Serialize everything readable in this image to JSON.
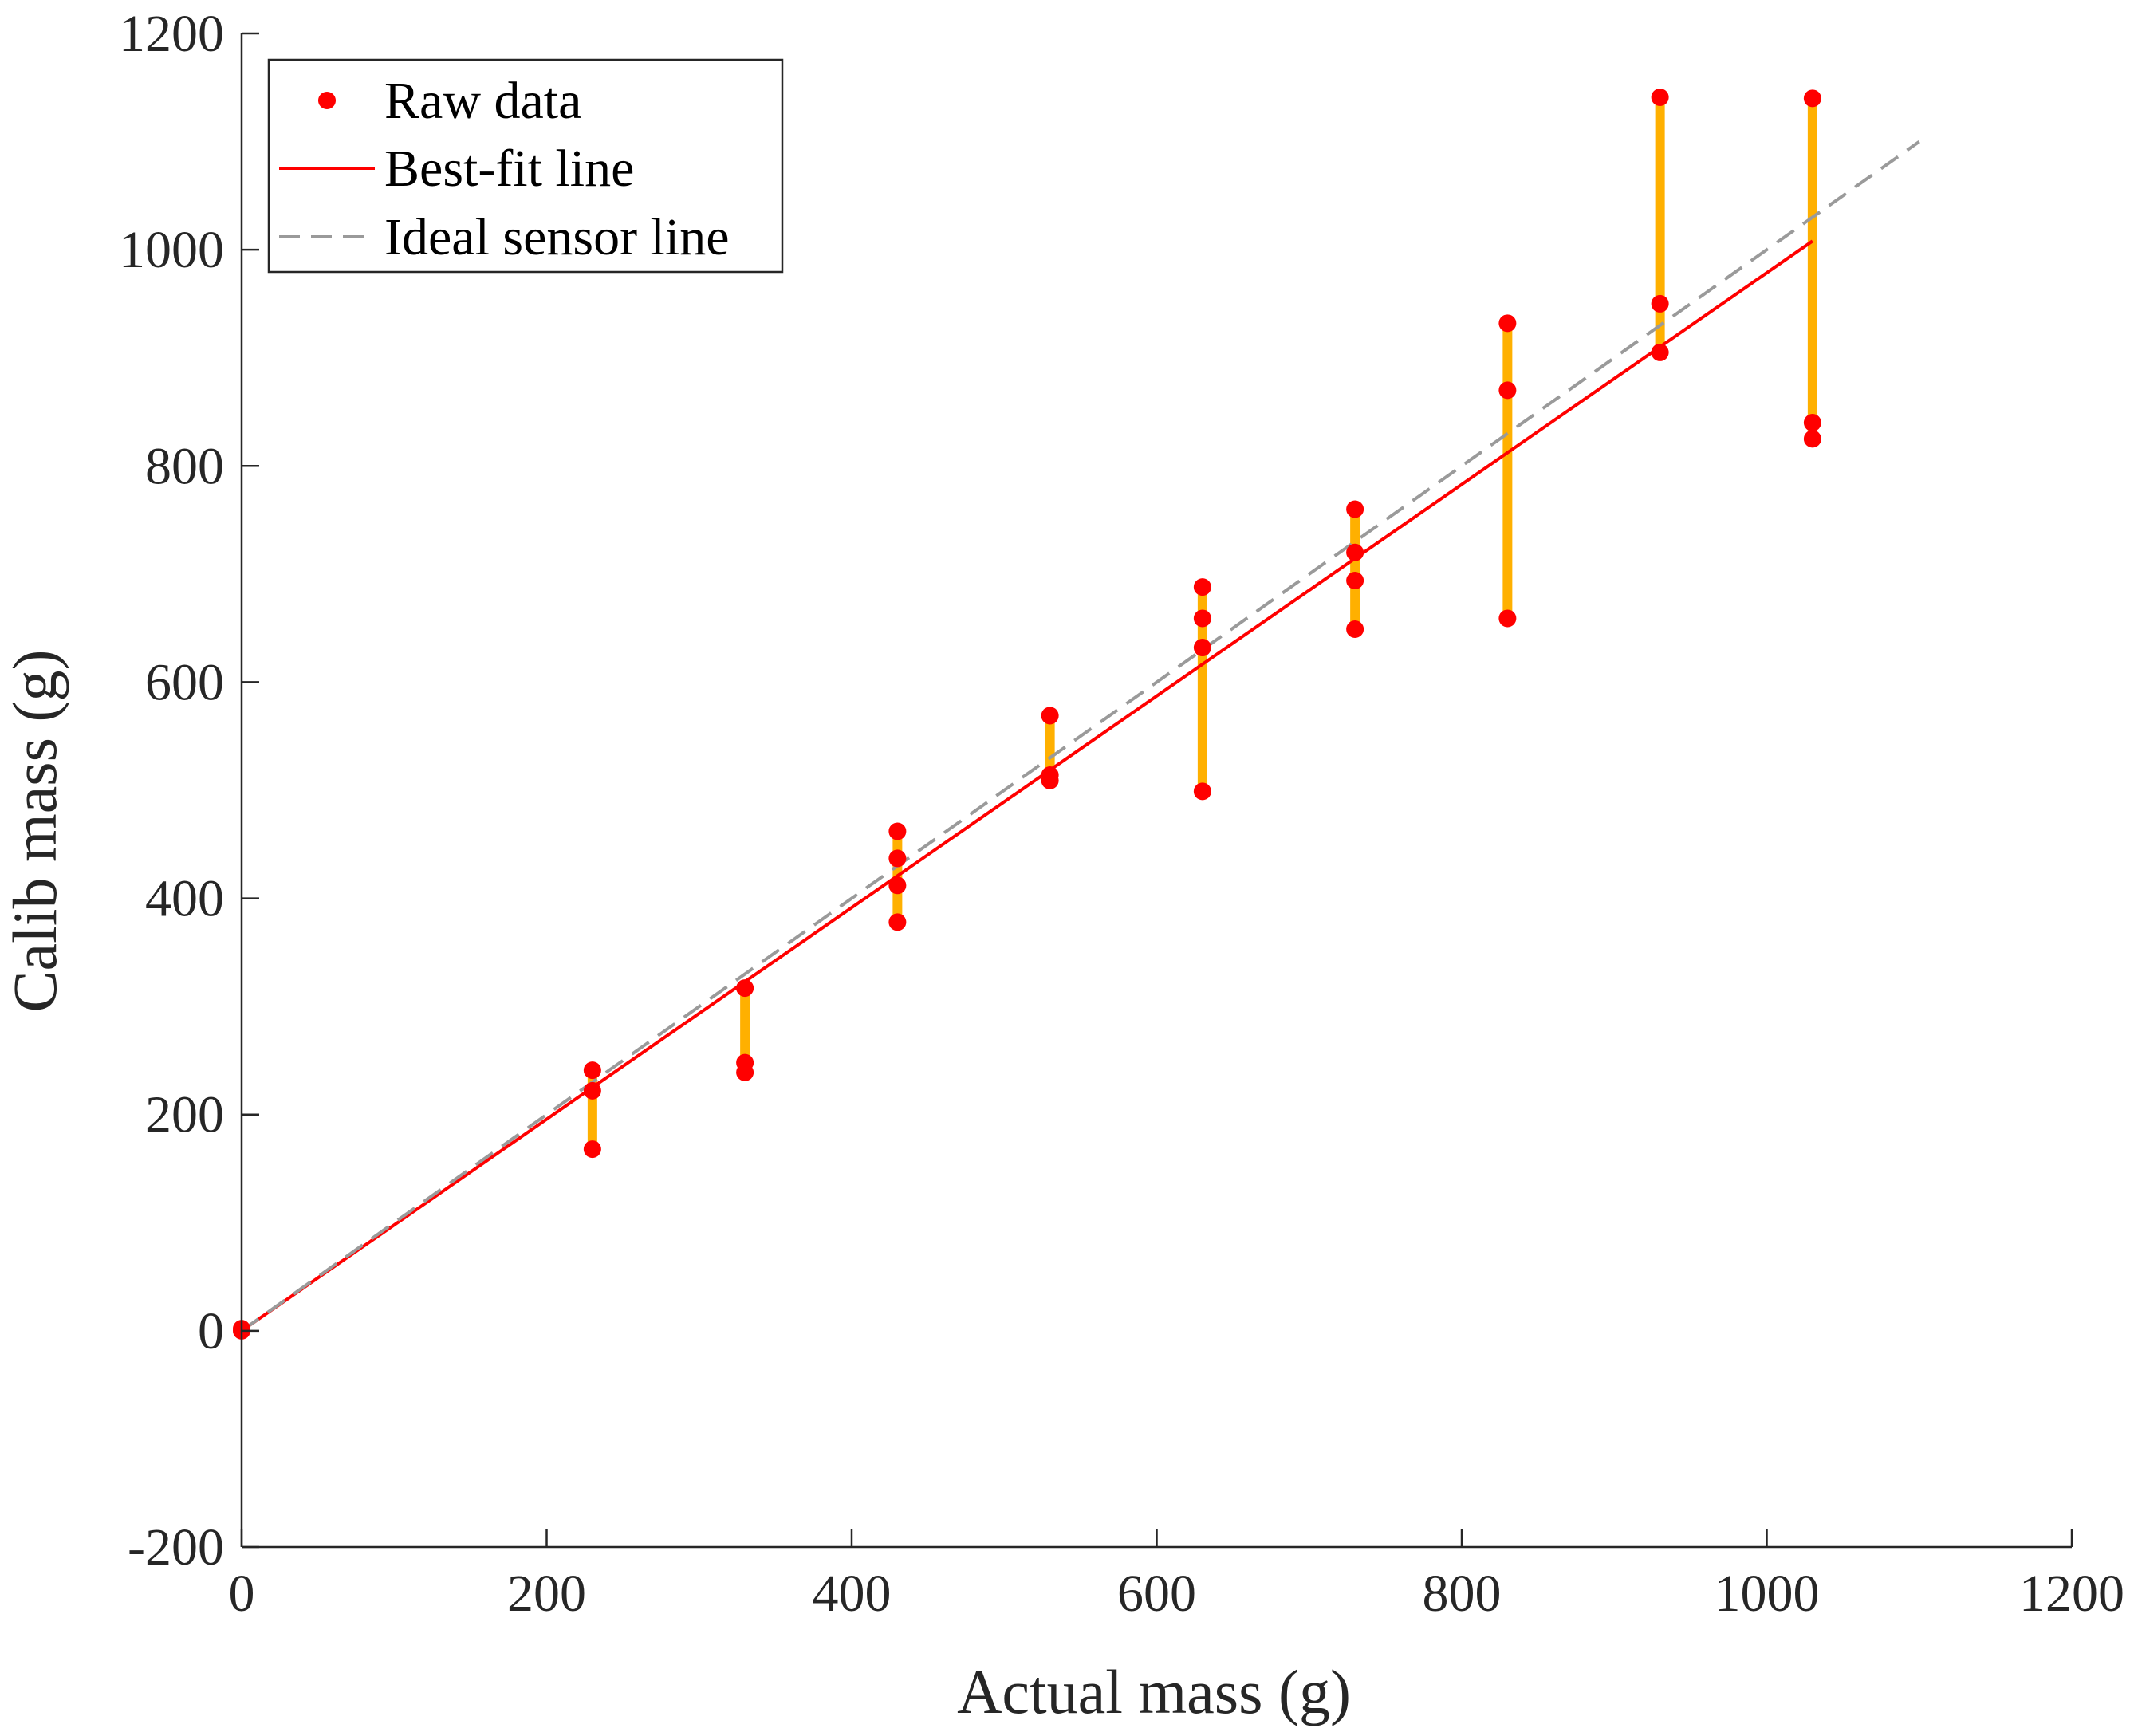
{
  "chart_data": {
    "type": "scatter",
    "title": "",
    "xlabel": "Actual mass (g)",
    "ylabel": "Calib mass (g)",
    "xlim": [
      0,
      1200
    ],
    "ylim": [
      -200,
      1200
    ],
    "xticks": [
      0,
      200,
      400,
      600,
      800,
      1000,
      1200
    ],
    "yticks": [
      -200,
      0,
      200,
      400,
      600,
      800,
      1000,
      1200
    ],
    "xtick_labels": [
      "0",
      "200",
      "400",
      "600",
      "800",
      "1000",
      "1200"
    ],
    "ytick_labels": [
      "-200",
      "0",
      "200",
      "400",
      "600",
      "800",
      "1000",
      "1200"
    ],
    "grid": false,
    "legend": {
      "position": "top-left",
      "entries": [
        "Raw data",
        "Best-fit line",
        "Ideal sensor line"
      ]
    },
    "series": [
      {
        "name": "Raw data",
        "kind": "scatter",
        "color": "#ff0000",
        "points": [
          {
            "x": 0,
            "y": 0
          },
          {
            "x": 0,
            "y": 2
          },
          {
            "x": 230,
            "y": 241
          },
          {
            "x": 230,
            "y": 222
          },
          {
            "x": 230,
            "y": 168
          },
          {
            "x": 330,
            "y": 317
          },
          {
            "x": 330,
            "y": 248
          },
          {
            "x": 330,
            "y": 239
          },
          {
            "x": 430,
            "y": 462
          },
          {
            "x": 430,
            "y": 437
          },
          {
            "x": 430,
            "y": 412
          },
          {
            "x": 430,
            "y": 378
          },
          {
            "x": 530,
            "y": 569
          },
          {
            "x": 530,
            "y": 514
          },
          {
            "x": 530,
            "y": 509
          },
          {
            "x": 630,
            "y": 688
          },
          {
            "x": 630,
            "y": 659
          },
          {
            "x": 630,
            "y": 632
          },
          {
            "x": 630,
            "y": 499
          },
          {
            "x": 730,
            "y": 760
          },
          {
            "x": 730,
            "y": 720
          },
          {
            "x": 730,
            "y": 694
          },
          {
            "x": 730,
            "y": 649
          },
          {
            "x": 830,
            "y": 932
          },
          {
            "x": 830,
            "y": 870
          },
          {
            "x": 830,
            "y": 659
          },
          {
            "x": 930,
            "y": 1141
          },
          {
            "x": 930,
            "y": 950
          },
          {
            "x": 930,
            "y": 905
          },
          {
            "x": 1030,
            "y": 1140
          },
          {
            "x": 1030,
            "y": 840
          },
          {
            "x": 1030,
            "y": 825
          }
        ]
      },
      {
        "name": "Best-fit line",
        "kind": "line",
        "color": "#ff0000",
        "style": "solid",
        "x": [
          0,
          1030
        ],
        "y": [
          0,
          1008
        ]
      },
      {
        "name": "Ideal sensor line",
        "kind": "line",
        "color": "#9a9a9a",
        "style": "dashed",
        "x": [
          0,
          1100
        ],
        "y": [
          0,
          1100
        ]
      }
    ],
    "error_bars": {
      "color": "#ffb000",
      "ranges": [
        {
          "x": 230,
          "low": 168,
          "high": 241
        },
        {
          "x": 330,
          "low": 239,
          "high": 317
        },
        {
          "x": 430,
          "low": 378,
          "high": 462
        },
        {
          "x": 530,
          "low": 509,
          "high": 569
        },
        {
          "x": 630,
          "low": 499,
          "high": 688
        },
        {
          "x": 730,
          "low": 649,
          "high": 760
        },
        {
          "x": 830,
          "low": 659,
          "high": 932
        },
        {
          "x": 930,
          "low": 905,
          "high": 1141
        },
        {
          "x": 1030,
          "low": 825,
          "high": 1140
        }
      ]
    }
  }
}
